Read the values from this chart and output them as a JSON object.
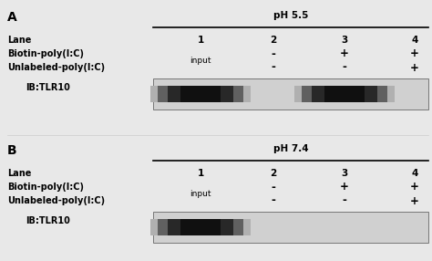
{
  "bg_color": "#e8e8e8",
  "panel_A": {
    "label": "A",
    "ph_label": "pH 5.5",
    "lane_label": "Lane",
    "biotin_label": "Biotin-poly(I:C)",
    "unlabeled_label": "Unlabeled-poly(I:C)",
    "ib_label": "IB:TLR10",
    "lanes": [
      "1",
      "2",
      "3",
      "4"
    ],
    "biotin": [
      "-",
      "+",
      "+"
    ],
    "unlabeled": [
      "-",
      "-",
      "+"
    ],
    "band_lane_indices": [
      0,
      2
    ],
    "band_A_darkness": [
      0.08,
      0.25
    ]
  },
  "panel_B": {
    "label": "B",
    "ph_label": "pH 7.4",
    "lane_label": "Lane",
    "biotin_label": "Biotin-poly(I:C)",
    "unlabeled_label": "Unlabeled-poly(I:C)",
    "ib_label": "IB:TLR10",
    "lanes": [
      "1",
      "2",
      "3",
      "4"
    ],
    "biotin": [
      "-",
      "+",
      "+"
    ],
    "unlabeled": [
      "-",
      "-",
      "+"
    ],
    "band_lane_indices": [
      0
    ],
    "band_A_darkness": [
      0.08
    ]
  }
}
